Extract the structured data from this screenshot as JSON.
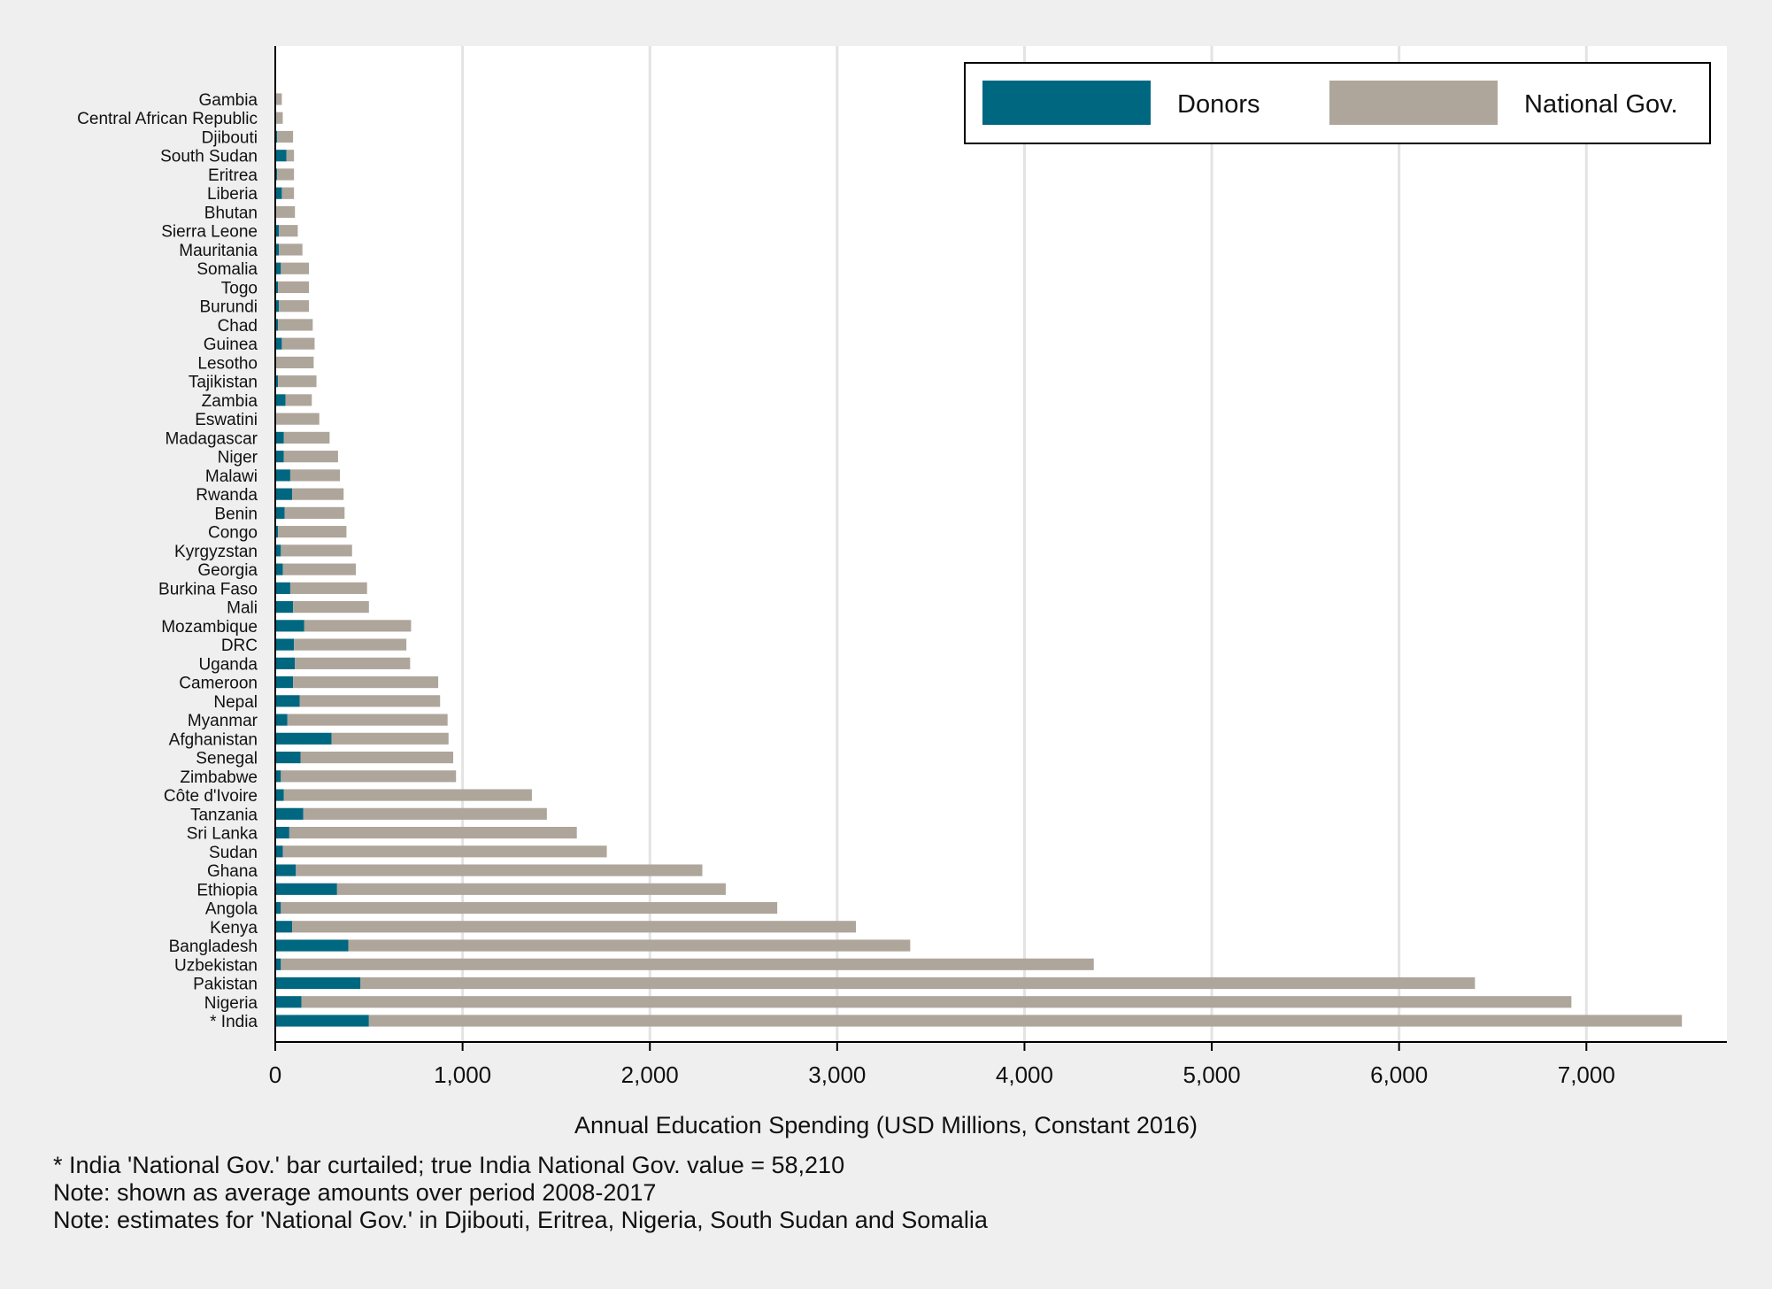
{
  "chart_data": {
    "type": "bar",
    "orientation": "horizontal",
    "stacked": true,
    "xlabel": "Annual Education Spending (USD Millions, Constant 2016)",
    "xlim": [
      0,
      7750
    ],
    "xticks": [
      0,
      1000,
      2000,
      3000,
      4000,
      5000,
      6000,
      7000
    ],
    "xtick_labels": [
      "0",
      "1,000",
      "2,000",
      "3,000",
      "4,000",
      "5,000",
      "6,000",
      "7,000"
    ],
    "grid": "vertical",
    "legend_position": "top-right",
    "categories": [
      "Gambia",
      "Central African Republic",
      "Djibouti",
      "South Sudan",
      "Eritrea",
      "Liberia",
      "Bhutan",
      "Sierra Leone",
      "Mauritania",
      "Somalia",
      "Togo",
      "Burundi",
      "Chad",
      "Guinea",
      "Lesotho",
      "Tajikistan",
      "Zambia",
      "Eswatini",
      "Madagascar",
      "Niger",
      "Malawi",
      "Rwanda",
      "Benin",
      "Congo",
      "Kyrgyzstan",
      "Georgia",
      "Burkina Faso",
      "Mali",
      "Mozambique",
      "DRC",
      "Uganda",
      "Cameroon",
      "Nepal",
      "Myanmar",
      "Afghanistan",
      "Senegal",
      "Zimbabwe",
      "Côte d'Ivoire",
      "Tanzania",
      "Sri Lanka",
      "Sudan",
      "Ghana",
      "Ethiopia",
      "Angola",
      "Kenya",
      "Bangladesh",
      "Uzbekistan",
      "Pakistan",
      "Nigeria",
      "* India"
    ],
    "series": [
      {
        "name": "Donors",
        "color": "#006780",
        "values": [
          5,
          5,
          10,
          60,
          10,
          35,
          5,
          20,
          20,
          30,
          15,
          20,
          15,
          35,
          5,
          15,
          55,
          5,
          45,
          45,
          80,
          90,
          50,
          15,
          30,
          40,
          80,
          95,
          155,
          100,
          105,
          95,
          130,
          65,
          300,
          135,
          30,
          45,
          150,
          75,
          40,
          110,
          330,
          30,
          90,
          390,
          30,
          455,
          140,
          500
        ]
      },
      {
        "name": "National Gov.",
        "color": "#aea59b",
        "values": [
          30,
          35,
          85,
          40,
          90,
          65,
          100,
          100,
          125,
          150,
          165,
          160,
          185,
          175,
          200,
          205,
          140,
          230,
          245,
          290,
          265,
          275,
          320,
          365,
          380,
          390,
          410,
          405,
          570,
          600,
          615,
          775,
          750,
          855,
          625,
          815,
          935,
          1325,
          1300,
          1535,
          1730,
          2170,
          2075,
          2650,
          3010,
          3000,
          4340,
          5950,
          6780,
          7010
        ]
      }
    ]
  },
  "notes": [
    "* India 'National Gov.' bar curtailed; true India National Gov. value = 58,210",
    "Note: shown as average amounts over period 2008-2017",
    "Note: estimates for 'National Gov.' in Djibouti, Eritrea, Nigeria, South Sudan and Somalia"
  ]
}
